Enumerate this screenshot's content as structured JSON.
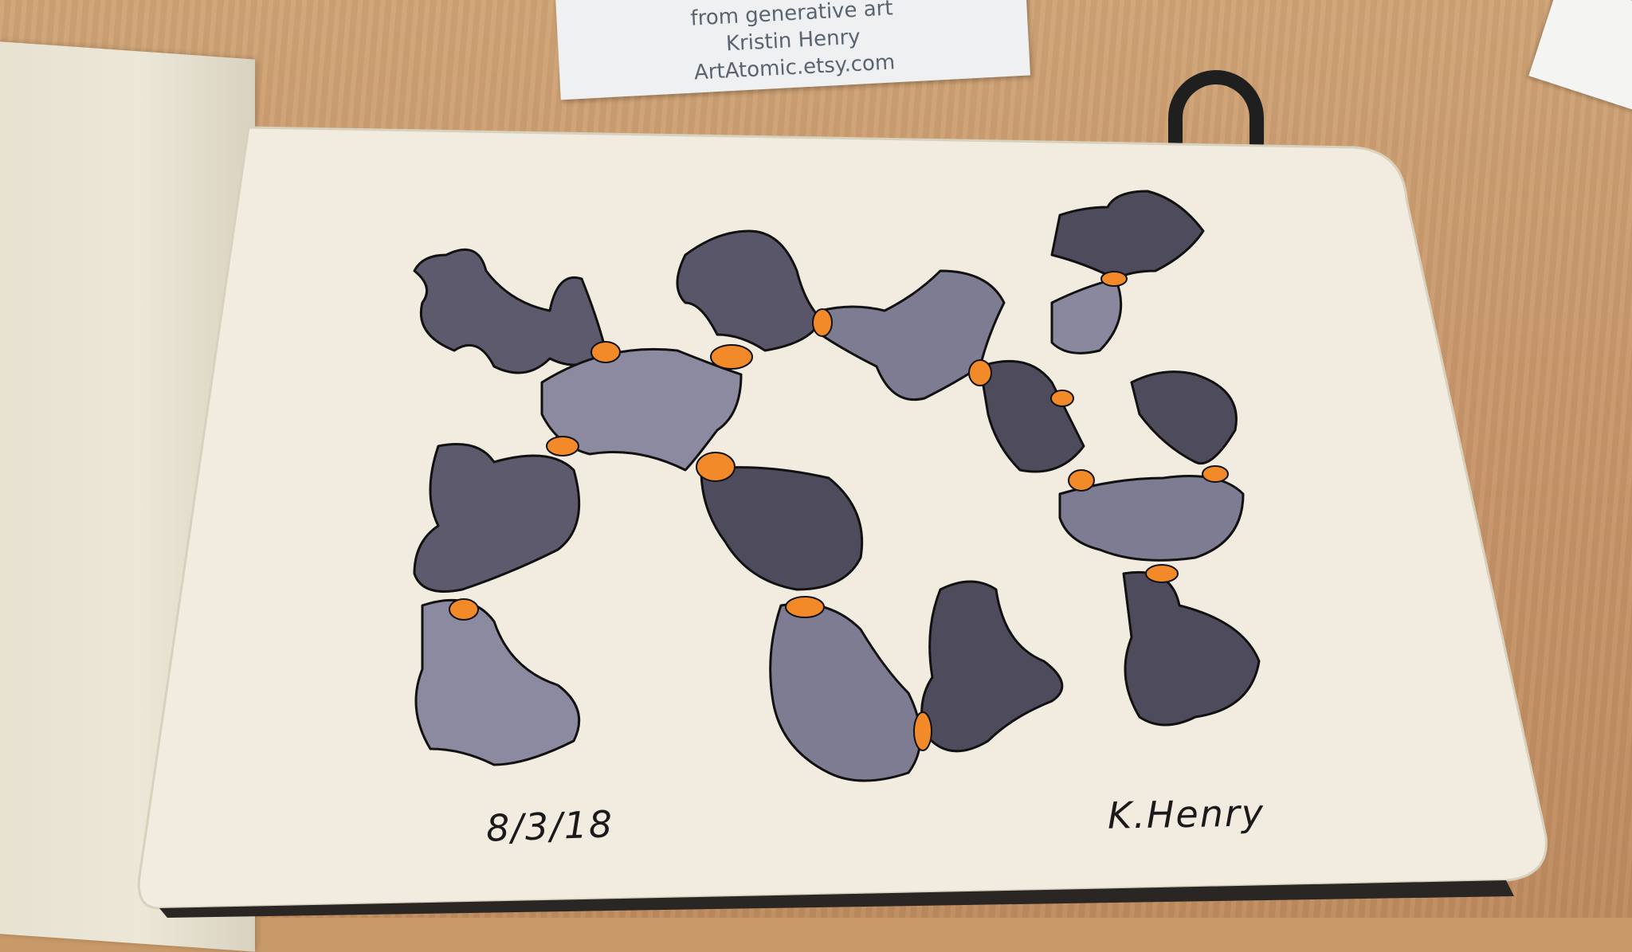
{
  "photo": {
    "business_card": {
      "lines": [
        "from generative art",
        "Kristin Henry",
        "ArtAtomic.etsy.com"
      ]
    },
    "sketchbook": {
      "date": "8/3/18",
      "signature": "K.Henry"
    }
  },
  "colors": {
    "desk": "#c8966a",
    "paper": "#f1ecdf",
    "blob_dark": "#4e4c5c",
    "blob_mid": "#6c6a7e",
    "blob_light": "#8e8ca2",
    "outline": "#111111",
    "joint_orange": "#f28a2a"
  }
}
